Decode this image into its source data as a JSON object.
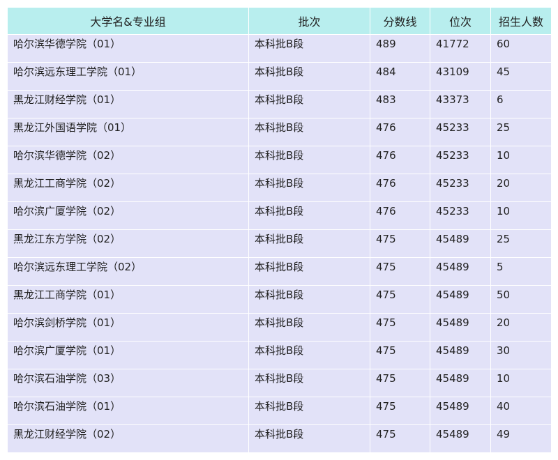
{
  "table": {
    "headers": [
      "大学名&专业组",
      "批次",
      "分数线",
      "位次",
      "招生人数"
    ],
    "rows": [
      [
        "哈尔滨华德学院（01）",
        "本科批B段",
        "489",
        "41772",
        "60"
      ],
      [
        "哈尔滨远东理工学院（01）",
        "本科批B段",
        "484",
        "43109",
        "45"
      ],
      [
        "黑龙江财经学院（01）",
        "本科批B段",
        "483",
        "43373",
        "6"
      ],
      [
        "黑龙江外国语学院（01）",
        "本科批B段",
        "476",
        "45233",
        "25"
      ],
      [
        "哈尔滨华德学院（02）",
        "本科批B段",
        "476",
        "45233",
        "10"
      ],
      [
        "黑龙江工商学院（02）",
        "本科批B段",
        "476",
        "45233",
        "20"
      ],
      [
        "哈尔滨广厦学院（02）",
        "本科批B段",
        "476",
        "45233",
        "10"
      ],
      [
        "黑龙江东方学院（02）",
        "本科批B段",
        "475",
        "45489",
        "25"
      ],
      [
        "哈尔滨远东理工学院（02）",
        "本科批B段",
        "475",
        "45489",
        "5"
      ],
      [
        "黑龙江工商学院（01）",
        "本科批B段",
        "475",
        "45489",
        "50"
      ],
      [
        "哈尔滨剑桥学院（01）",
        "本科批B段",
        "475",
        "45489",
        "20"
      ],
      [
        "哈尔滨广厦学院（01）",
        "本科批B段",
        "475",
        "45489",
        "30"
      ],
      [
        "哈尔滨石油学院（03）",
        "本科批B段",
        "475",
        "45489",
        "10"
      ],
      [
        "哈尔滨石油学院（01）",
        "本科批B段",
        "475",
        "45489",
        "40"
      ],
      [
        "黑龙江财经学院（02）",
        "本科批B段",
        "475",
        "45489",
        "49"
      ]
    ]
  }
}
